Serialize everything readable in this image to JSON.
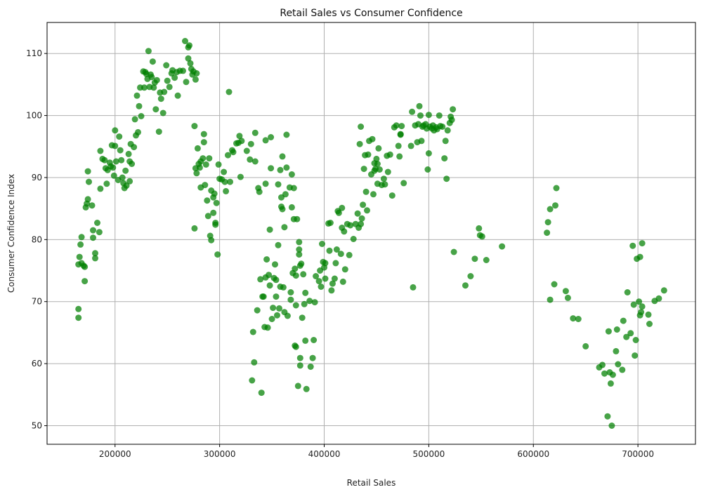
{
  "chart_data": {
    "type": "scatter",
    "title": "Retail Sales vs Consumer Confidence",
    "xlabel": "Retail Sales",
    "ylabel": "Consumer Confidence Index",
    "xlim": [
      135000,
      755000
    ],
    "ylim": [
      47,
      115
    ],
    "xticks": [
      200000,
      300000,
      400000,
      500000,
      600000,
      700000
    ],
    "yticks": [
      50,
      60,
      70,
      80,
      90,
      100,
      110
    ],
    "xtick_labels": [
      "200000",
      "300000",
      "400000",
      "500000",
      "600000",
      "700000"
    ],
    "ytick_labels": [
      "50",
      "60",
      "70",
      "80",
      "90",
      "100",
      "110"
    ],
    "grid": true,
    "marker_color": "#008000",
    "marker_alpha": 0.72,
    "points": [
      [
        165000,
        67.4
      ],
      [
        165000,
        68.8
      ],
      [
        165000,
        76.0
      ],
      [
        166000,
        77.2
      ],
      [
        167000,
        79.2
      ],
      [
        168000,
        80.4
      ],
      [
        168000,
        76.2
      ],
      [
        170000,
        75.8
      ],
      [
        171000,
        73.3
      ],
      [
        171000,
        75.6
      ],
      [
        172000,
        85.2
      ],
      [
        173000,
        85.8
      ],
      [
        174000,
        86.5
      ],
      [
        174000,
        91.0
      ],
      [
        175000,
        89.3
      ],
      [
        178000,
        85.5
      ],
      [
        179000,
        80.3
      ],
      [
        179000,
        81.5
      ],
      [
        181000,
        77.0
      ],
      [
        181000,
        77.8
      ],
      [
        183000,
        82.7
      ],
      [
        185000,
        81.2
      ],
      [
        186000,
        88.2
      ],
      [
        186000,
        94.3
      ],
      [
        188000,
        93.0
      ],
      [
        190000,
        92.8
      ],
      [
        191000,
        91.5
      ],
      [
        192000,
        89.0
      ],
      [
        193000,
        91.2
      ],
      [
        195000,
        92.4
      ],
      [
        196000,
        91.8
      ],
      [
        197000,
        95.2
      ],
      [
        198000,
        91.6
      ],
      [
        199000,
        90.3
      ],
      [
        200000,
        97.6
      ],
      [
        200000,
        95.1
      ],
      [
        201000,
        92.6
      ],
      [
        203000,
        89.6
      ],
      [
        204000,
        96.6
      ],
      [
        205000,
        94.4
      ],
      [
        206000,
        92.8
      ],
      [
        207000,
        90.0
      ],
      [
        208000,
        89.1
      ],
      [
        209000,
        88.3
      ],
      [
        210000,
        91.1
      ],
      [
        211000,
        88.7
      ],
      [
        213000,
        93.8
      ],
      [
        214000,
        92.6
      ],
      [
        214000,
        89.4
      ],
      [
        215000,
        95.4
      ],
      [
        216000,
        92.2
      ],
      [
        218000,
        94.9
      ],
      [
        219000,
        99.4
      ],
      [
        220000,
        96.8
      ],
      [
        221000,
        103.2
      ],
      [
        222000,
        97.3
      ],
      [
        223000,
        101.5
      ],
      [
        224000,
        104.5
      ],
      [
        225000,
        99.9
      ],
      [
        227000,
        107.1
      ],
      [
        228000,
        104.5
      ],
      [
        229000,
        107.0
      ],
      [
        230000,
        106.7
      ],
      [
        231000,
        105.9
      ],
      [
        232000,
        110.4
      ],
      [
        233000,
        104.6
      ],
      [
        234000,
        106.6
      ],
      [
        235000,
        106.2
      ],
      [
        236000,
        108.7
      ],
      [
        237000,
        104.5
      ],
      [
        238000,
        105.3
      ],
      [
        239000,
        101.0
      ],
      [
        240000,
        105.7
      ],
      [
        242000,
        97.4
      ],
      [
        243000,
        103.7
      ],
      [
        244000,
        102.7
      ],
      [
        246000,
        100.4
      ],
      [
        247000,
        103.8
      ],
      [
        249000,
        108.1
      ],
      [
        250000,
        105.6
      ],
      [
        252000,
        104.6
      ],
      [
        254000,
        106.8
      ],
      [
        255000,
        107.3
      ],
      [
        257000,
        106.1
      ],
      [
        259000,
        107.0
      ],
      [
        260000,
        103.2
      ],
      [
        262000,
        107.2
      ],
      [
        265000,
        107.2
      ],
      [
        267000,
        112.0
      ],
      [
        268000,
        105.4
      ],
      [
        270000,
        111.0
      ],
      [
        270000,
        109.2
      ],
      [
        271000,
        111.3
      ],
      [
        272000,
        108.4
      ],
      [
        273000,
        107.5
      ],
      [
        274000,
        106.6
      ],
      [
        275000,
        107.1
      ],
      [
        276000,
        98.3
      ],
      [
        276000,
        81.8
      ],
      [
        277000,
        91.5
      ],
      [
        277000,
        105.8
      ],
      [
        278000,
        106.8
      ],
      [
        278000,
        90.7
      ],
      [
        279000,
        94.7
      ],
      [
        280000,
        92.2
      ],
      [
        281000,
        91.6
      ],
      [
        282000,
        88.4
      ],
      [
        282000,
        92.6
      ],
      [
        284000,
        93.1
      ],
      [
        285000,
        97.0
      ],
      [
        285000,
        95.7
      ],
      [
        286000,
        88.8
      ],
      [
        287000,
        92.1
      ],
      [
        288000,
        86.3
      ],
      [
        289000,
        83.8
      ],
      [
        290000,
        93.1
      ],
      [
        291000,
        80.6
      ],
      [
        292000,
        79.9
      ],
      [
        292000,
        87.9
      ],
      [
        294000,
        84.3
      ],
      [
        294000,
        86.8
      ],
      [
        295000,
        87.4
      ],
      [
        296000,
        82.7
      ],
      [
        296000,
        82.4
      ],
      [
        297000,
        85.9
      ],
      [
        298000,
        77.6
      ],
      [
        299000,
        92.1
      ],
      [
        300000,
        89.8
      ],
      [
        302000,
        89.7
      ],
      [
        304000,
        90.9
      ],
      [
        305000,
        89.3
      ],
      [
        306000,
        87.8
      ],
      [
        308000,
        93.6
      ],
      [
        309000,
        103.8
      ],
      [
        310000,
        89.3
      ],
      [
        312000,
        94.4
      ],
      [
        313000,
        94.1
      ],
      [
        316000,
        95.5
      ],
      [
        318000,
        95.6
      ],
      [
        319000,
        96.7
      ],
      [
        320000,
        90.1
      ],
      [
        321000,
        95.9
      ],
      [
        326000,
        94.3
      ],
      [
        329000,
        92.9
      ],
      [
        330000,
        95.4
      ],
      [
        331000,
        57.3
      ],
      [
        332000,
        65.1
      ],
      [
        333000,
        60.2
      ],
      [
        334000,
        97.2
      ],
      [
        334000,
        92.6
      ],
      [
        336000,
        68.6
      ],
      [
        337000,
        88.3
      ],
      [
        338000,
        87.7
      ],
      [
        339000,
        73.6
      ],
      [
        340000,
        55.3
      ],
      [
        341000,
        70.8
      ],
      [
        342000,
        70.8
      ],
      [
        343000,
        65.9
      ],
      [
        344000,
        89.0
      ],
      [
        344000,
        96.0
      ],
      [
        344000,
        73.9
      ],
      [
        345000,
        76.8
      ],
      [
        346000,
        65.8
      ],
      [
        347000,
        74.3
      ],
      [
        348000,
        72.6
      ],
      [
        348000,
        81.6
      ],
      [
        349000,
        91.5
      ],
      [
        349000,
        96.5
      ],
      [
        350000,
        67.2
      ],
      [
        351000,
        69.0
      ],
      [
        352000,
        73.8
      ],
      [
        353000,
        76.0
      ],
      [
        354000,
        70.8
      ],
      [
        354000,
        73.5
      ],
      [
        355000,
        67.8
      ],
      [
        356000,
        88.9
      ],
      [
        356000,
        79.1
      ],
      [
        357000,
        68.9
      ],
      [
        358000,
        72.4
      ],
      [
        358000,
        91.2
      ],
      [
        359000,
        86.8
      ],
      [
        359000,
        85.3
      ],
      [
        360000,
        93.4
      ],
      [
        360000,
        84.9
      ],
      [
        361000,
        72.3
      ],
      [
        362000,
        82.0
      ],
      [
        362000,
        68.3
      ],
      [
        363000,
        87.3
      ],
      [
        364000,
        96.9
      ],
      [
        364000,
        91.6
      ],
      [
        365000,
        67.7
      ],
      [
        367000,
        88.4
      ],
      [
        368000,
        71.5
      ],
      [
        368000,
        70.3
      ],
      [
        369000,
        85.2
      ],
      [
        369000,
        90.5
      ],
      [
        370000,
        74.6
      ],
      [
        371000,
        88.3
      ],
      [
        371000,
        83.3
      ],
      [
        372000,
        62.9
      ],
      [
        372000,
        75.3
      ],
      [
        373000,
        62.7
      ],
      [
        373000,
        74.2
      ],
      [
        373000,
        69.4
      ],
      [
        374000,
        83.3
      ],
      [
        375000,
        56.4
      ],
      [
        376000,
        79.6
      ],
      [
        376000,
        78.4
      ],
      [
        376000,
        77.6
      ],
      [
        377000,
        59.7
      ],
      [
        377000,
        60.9
      ],
      [
        377000,
        75.8
      ],
      [
        378000,
        76.1
      ],
      [
        379000,
        67.4
      ],
      [
        380000,
        74.4
      ],
      [
        381000,
        69.6
      ],
      [
        382000,
        71.4
      ],
      [
        382000,
        63.7
      ],
      [
        383000,
        55.9
      ],
      [
        386000,
        70.1
      ],
      [
        387000,
        59.5
      ],
      [
        389000,
        60.9
      ],
      [
        390000,
        63.8
      ],
      [
        391000,
        69.9
      ],
      [
        392000,
        74.1
      ],
      [
        395000,
        73.3
      ],
      [
        396000,
        75.0
      ],
      [
        397000,
        72.4
      ],
      [
        398000,
        79.3
      ],
      [
        399000,
        76.4
      ],
      [
        400000,
        75.5
      ],
      [
        401000,
        76.2
      ],
      [
        401000,
        73.7
      ],
      [
        404000,
        82.6
      ],
      [
        405000,
        78.2
      ],
      [
        406000,
        82.7
      ],
      [
        407000,
        71.8
      ],
      [
        408000,
        72.9
      ],
      [
        410000,
        73.7
      ],
      [
        411000,
        76.2
      ],
      [
        412000,
        78.4
      ],
      [
        413000,
        84.6
      ],
      [
        414000,
        84.3
      ],
      [
        416000,
        77.7
      ],
      [
        417000,
        81.9
      ],
      [
        417000,
        85.1
      ],
      [
        418000,
        73.2
      ],
      [
        419000,
        81.3
      ],
      [
        420000,
        75.2
      ],
      [
        422000,
        82.5
      ],
      [
        424000,
        77.5
      ],
      [
        425000,
        82.3
      ],
      [
        428000,
        80.1
      ],
      [
        430000,
        82.5
      ],
      [
        432000,
        84.2
      ],
      [
        433000,
        81.9
      ],
      [
        434000,
        95.4
      ],
      [
        435000,
        98.2
      ],
      [
        435000,
        82.5
      ],
      [
        436000,
        83.4
      ],
      [
        437000,
        85.6
      ],
      [
        438000,
        91.4
      ],
      [
        439000,
        93.6
      ],
      [
        440000,
        87.7
      ],
      [
        441000,
        84.7
      ],
      [
        442000,
        93.7
      ],
      [
        443000,
        95.9
      ],
      [
        445000,
        90.5
      ],
      [
        446000,
        96.2
      ],
      [
        447000,
        87.3
      ],
      [
        448000,
        91.1
      ],
      [
        448000,
        92.3
      ],
      [
        449000,
        91.4
      ],
      [
        450000,
        93.0
      ],
      [
        451000,
        92.2
      ],
      [
        451000,
        89.0
      ],
      [
        452000,
        94.7
      ],
      [
        453000,
        91.3
      ],
      [
        455000,
        88.8
      ],
      [
        457000,
        89.8
      ],
      [
        458000,
        88.9
      ],
      [
        460000,
        93.5
      ],
      [
        461000,
        90.9
      ],
      [
        463000,
        93.7
      ],
      [
        465000,
        87.1
      ],
      [
        467000,
        98.1
      ],
      [
        469000,
        98.4
      ],
      [
        471000,
        95.1
      ],
      [
        472000,
        93.4
      ],
      [
        473000,
        96.9
      ],
      [
        473000,
        97.0
      ],
      [
        474000,
        98.3
      ],
      [
        476000,
        89.1
      ],
      [
        483000,
        95.1
      ],
      [
        484000,
        100.6
      ],
      [
        485000,
        72.3
      ],
      [
        487000,
        98.4
      ],
      [
        489000,
        95.7
      ],
      [
        490000,
        98.6
      ],
      [
        491000,
        101.5
      ],
      [
        492000,
        100.0
      ],
      [
        493000,
        95.9
      ],
      [
        494000,
        98.2
      ],
      [
        495000,
        98.4
      ],
      [
        497000,
        98.6
      ],
      [
        498000,
        97.9
      ],
      [
        499000,
        91.3
      ],
      [
        500000,
        100.1
      ],
      [
        500000,
        93.9
      ],
      [
        501000,
        98.2
      ],
      [
        503000,
        97.9
      ],
      [
        504000,
        98.4
      ],
      [
        505000,
        97.6
      ],
      [
        507000,
        98.1
      ],
      [
        508000,
        97.8
      ],
      [
        510000,
        100.0
      ],
      [
        511000,
        98.3
      ],
      [
        513000,
        98.2
      ],
      [
        515000,
        93.1
      ],
      [
        516000,
        95.9
      ],
      [
        517000,
        89.8
      ],
      [
        518000,
        97.6
      ],
      [
        520000,
        98.8
      ],
      [
        521000,
        99.8
      ],
      [
        522000,
        99.3
      ],
      [
        523000,
        101.0
      ],
      [
        524000,
        78.0
      ],
      [
        535000,
        72.6
      ],
      [
        540000,
        74.1
      ],
      [
        544000,
        76.9
      ],
      [
        548000,
        81.8
      ],
      [
        549000,
        80.7
      ],
      [
        551000,
        80.5
      ],
      [
        555000,
        76.7
      ],
      [
        570000,
        78.9
      ],
      [
        613000,
        81.1
      ],
      [
        614000,
        82.8
      ],
      [
        616000,
        70.3
      ],
      [
        616000,
        84.9
      ],
      [
        620000,
        72.8
      ],
      [
        621000,
        85.5
      ],
      [
        622000,
        88.3
      ],
      [
        631000,
        71.7
      ],
      [
        633000,
        70.6
      ],
      [
        638000,
        67.3
      ],
      [
        643000,
        67.2
      ],
      [
        650000,
        62.8
      ],
      [
        663000,
        59.4
      ],
      [
        666000,
        59.8
      ],
      [
        668000,
        58.4
      ],
      [
        671000,
        51.5
      ],
      [
        672000,
        65.2
      ],
      [
        673000,
        58.6
      ],
      [
        674000,
        56.8
      ],
      [
        675000,
        50.0
      ],
      [
        676000,
        58.2
      ],
      [
        679000,
        62.0
      ],
      [
        680000,
        65.5
      ],
      [
        681000,
        59.9
      ],
      [
        685000,
        59.0
      ],
      [
        686000,
        66.9
      ],
      [
        689000,
        64.3
      ],
      [
        690000,
        71.5
      ],
      [
        693000,
        64.9
      ],
      [
        695000,
        79.0
      ],
      [
        696000,
        69.5
      ],
      [
        697000,
        61.3
      ],
      [
        698000,
        63.8
      ],
      [
        699000,
        76.9
      ],
      [
        701000,
        70.0
      ],
      [
        702000,
        77.2
      ],
      [
        702000,
        67.8
      ],
      [
        703000,
        68.3
      ],
      [
        704000,
        69.2
      ],
      [
        704000,
        79.4
      ],
      [
        710000,
        67.9
      ],
      [
        711000,
        66.4
      ],
      [
        716000,
        70.1
      ],
      [
        720000,
        70.5
      ],
      [
        725000,
        71.8
      ]
    ]
  }
}
